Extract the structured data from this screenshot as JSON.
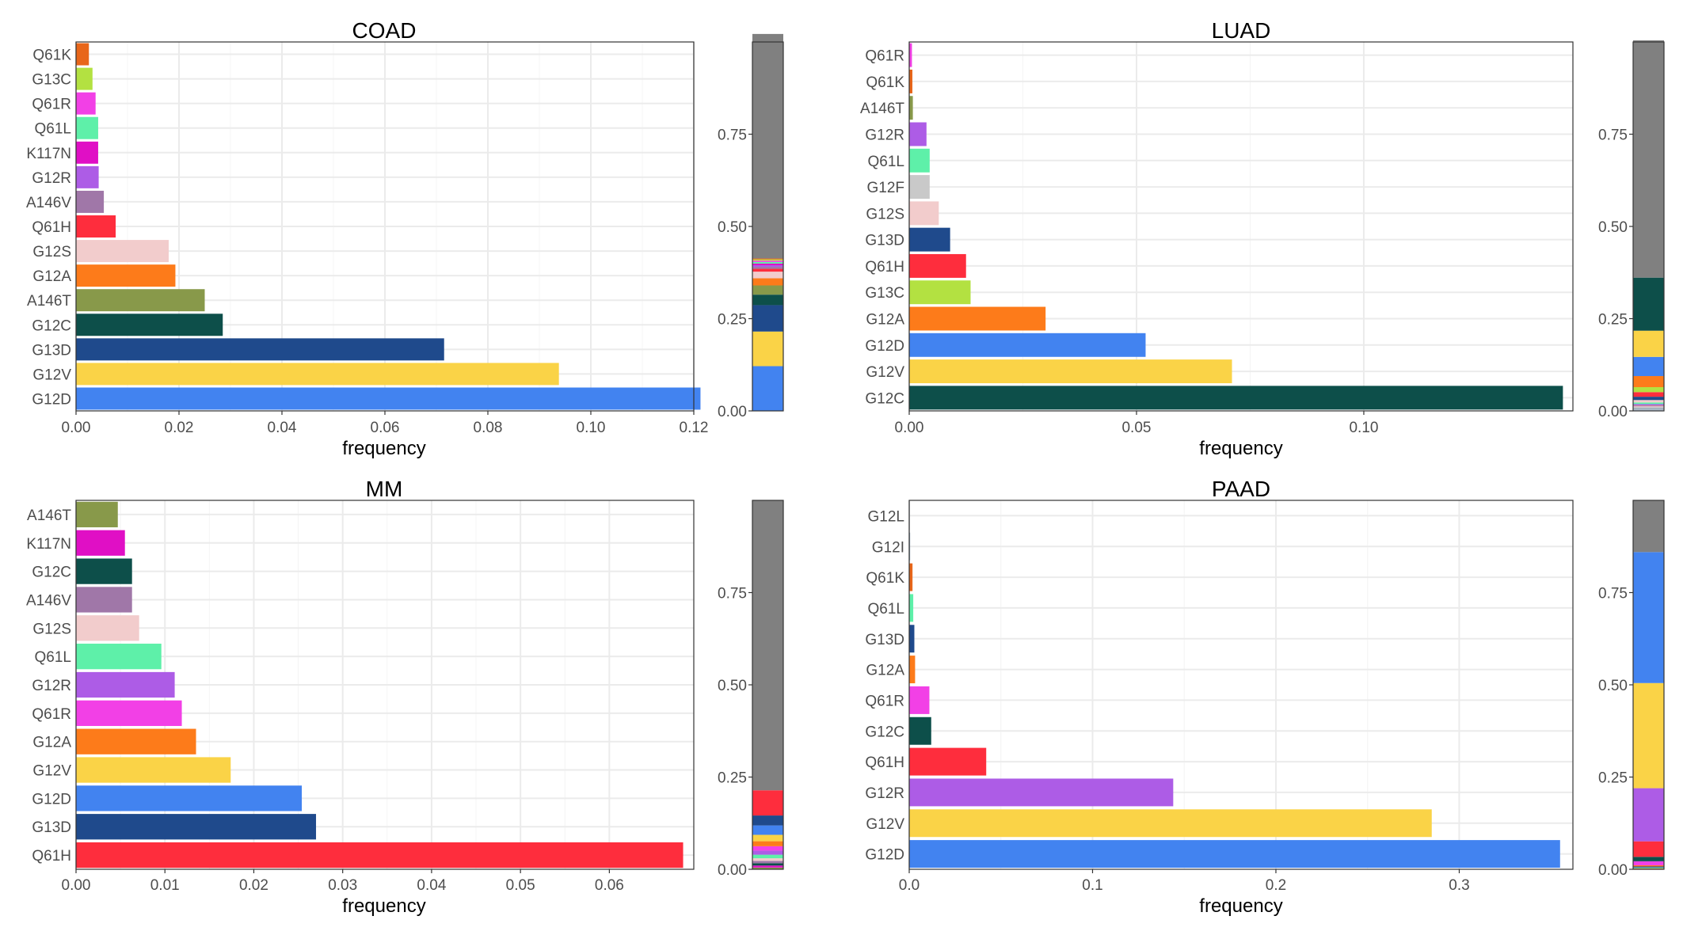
{
  "figure": {
    "background": "#ffffff"
  },
  "colors": {
    "Q61K": "#e8661a",
    "G13C": "#b3e141",
    "Q61R": "#f240e6",
    "Q61L": "#5ef0a9",
    "K117N": "#e00fc5",
    "G12R": "#ad5ce6",
    "A146V": "#a077a8",
    "Q61H": "#fe2d3d",
    "G12S": "#f2cccc",
    "G12A": "#fd7b1a",
    "A146T": "#88994a",
    "G12C": "#0d4f4a",
    "G13D": "#1f4a8c",
    "G12V": "#fad347",
    "G12D": "#4283f0",
    "G12F": "#c9c9c9",
    "G12L": "#b0bed0",
    "G12I": "#98a8b8",
    "other": "#808080"
  },
  "chart_data": [
    {
      "type": "bar",
      "orientation": "horizontal",
      "title": "COAD",
      "xlabel": "frequency",
      "ylabel": "",
      "xlim": [
        0,
        0.12
      ],
      "xticks": [
        "0.00",
        "0.02",
        "0.04",
        "0.06",
        "0.08",
        "0.10",
        "0.12"
      ],
      "grid": true,
      "categories": [
        "Q61K",
        "G13C",
        "Q61R",
        "Q61L",
        "K117N",
        "G12R",
        "A146V",
        "Q61H",
        "G12S",
        "G12A",
        "A146T",
        "G12C",
        "G13D",
        "G12V",
        "G12D"
      ],
      "values": [
        0.0025,
        0.0032,
        0.0038,
        0.0043,
        0.0043,
        0.0044,
        0.0054,
        0.0077,
        0.018,
        0.0193,
        0.025,
        0.0285,
        0.0715,
        0.0938,
        0.1213
      ],
      "stack": {
        "type": "stacked-bar",
        "yticks": [
          "0.00",
          "0.25",
          "0.50",
          "0.75"
        ],
        "ylim": [
          0,
          1
        ],
        "order": [
          "G12D",
          "G12V",
          "G13D",
          "G12C",
          "A146T",
          "G12A",
          "G12S",
          "Q61H",
          "A146V",
          "G12R",
          "K117N",
          "Q61L",
          "Q61R",
          "G13C",
          "Q61K",
          "other"
        ],
        "other": 0.6087
      }
    },
    {
      "type": "bar",
      "orientation": "horizontal",
      "title": "LUAD",
      "xlabel": "frequency",
      "ylabel": "",
      "xlim": [
        0,
        0.146
      ],
      "xticks": [
        "0.00",
        "0.05",
        "0.10"
      ],
      "grid": true,
      "categories": [
        "Q61R",
        "Q61K",
        "A146T",
        "G12R",
        "Q61L",
        "G12F",
        "G12S",
        "G13D",
        "Q61H",
        "G13C",
        "G12A",
        "G12D",
        "G12V",
        "G12C"
      ],
      "values": [
        0.0006,
        0.0007,
        0.0008,
        0.0038,
        0.0045,
        0.0045,
        0.0065,
        0.009,
        0.0125,
        0.0135,
        0.03,
        0.052,
        0.071,
        0.1438
      ],
      "stack": {
        "type": "stacked-bar",
        "yticks": [
          "0.00",
          "0.25",
          "0.50",
          "0.75"
        ],
        "ylim": [
          0,
          1
        ],
        "order": [
          "G12L",
          "G12I",
          "G12F",
          "Q61R",
          "Q61K",
          "A146T",
          "G12R",
          "Q61L",
          "G12S",
          "G13D",
          "Q61H",
          "G13C",
          "G12A",
          "G12D",
          "G12V",
          "G12C",
          "other"
        ],
        "extra": {
          "G12L": 0.004,
          "G12I": 0.004
        },
        "other": 0.6432
      }
    },
    {
      "type": "bar",
      "orientation": "horizontal",
      "title": "MM",
      "xlabel": "frequency",
      "ylabel": "",
      "xlim": [
        0,
        0.0695
      ],
      "xticks": [
        "0.00",
        "0.01",
        "0.02",
        "0.03",
        "0.04",
        "0.05",
        "0.06"
      ],
      "grid": true,
      "categories": [
        "A146T",
        "K117N",
        "G12C",
        "A146V",
        "G12S",
        "Q61L",
        "G12R",
        "Q61R",
        "G12A",
        "G12V",
        "G12D",
        "G13D",
        "Q61H"
      ],
      "values": [
        0.0047,
        0.0055,
        0.0063,
        0.0063,
        0.0071,
        0.0096,
        0.0111,
        0.0119,
        0.0135,
        0.0174,
        0.0254,
        0.027,
        0.0683
      ],
      "stack": {
        "type": "stacked-bar",
        "yticks": [
          "0.00",
          "0.25",
          "0.50",
          "0.75"
        ],
        "ylim": [
          0,
          1
        ],
        "order": [
          "A146T",
          "K117N",
          "G12C",
          "A146V",
          "G12S",
          "Q61L",
          "G12R",
          "Q61R",
          "G12A",
          "G12V",
          "G12D",
          "G13D",
          "Q61H",
          "other"
        ],
        "other": 0.7852
      }
    },
    {
      "type": "bar",
      "orientation": "horizontal",
      "title": "PAAD",
      "xlabel": "frequency",
      "ylabel": "",
      "xlim": [
        0,
        0.362
      ],
      "xticks": [
        "0.0",
        "0.1",
        "0.2",
        "0.3"
      ],
      "grid": true,
      "categories": [
        "G12L",
        "G12I",
        "Q61K",
        "Q61L",
        "G13D",
        "G12A",
        "Q61R",
        "G12C",
        "Q61H",
        "G12R",
        "G12V",
        "G12D"
      ],
      "values": [
        0.0003,
        0.0005,
        0.0018,
        0.0022,
        0.0028,
        0.0032,
        0.011,
        0.012,
        0.042,
        0.144,
        0.285,
        0.355
      ],
      "stack": {
        "type": "stacked-bar",
        "yticks": [
          "0.00",
          "0.25",
          "0.50",
          "0.75"
        ],
        "ylim": [
          0,
          1
        ],
        "order": [
          "G12L",
          "G12I",
          "Q61K",
          "Q61L",
          "G13D",
          "G12A",
          "Q61R",
          "G12C",
          "Q61H",
          "G12R",
          "G12V",
          "G12D",
          "other"
        ],
        "other": 0.1402
      }
    }
  ]
}
